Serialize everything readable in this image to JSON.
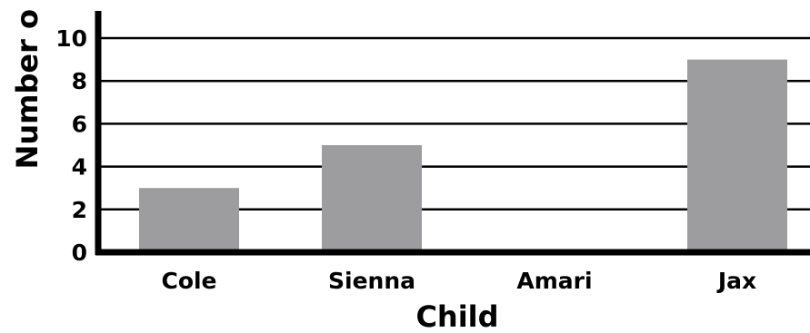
{
  "chart_data": {
    "type": "bar",
    "title": "",
    "xlabel": "Child",
    "ylabel": "Number o",
    "categories": [
      "Cole",
      "Sienna",
      "Amari",
      "Jax"
    ],
    "values": [
      3,
      5,
      0,
      9
    ],
    "ylim": [
      0,
      10
    ],
    "yticks": [
      0,
      2,
      4,
      6,
      8,
      10
    ],
    "grid": true,
    "legend": "none",
    "colors": {
      "bar": "#9d9da0",
      "axis": "#000000",
      "grid": "#000000"
    }
  }
}
